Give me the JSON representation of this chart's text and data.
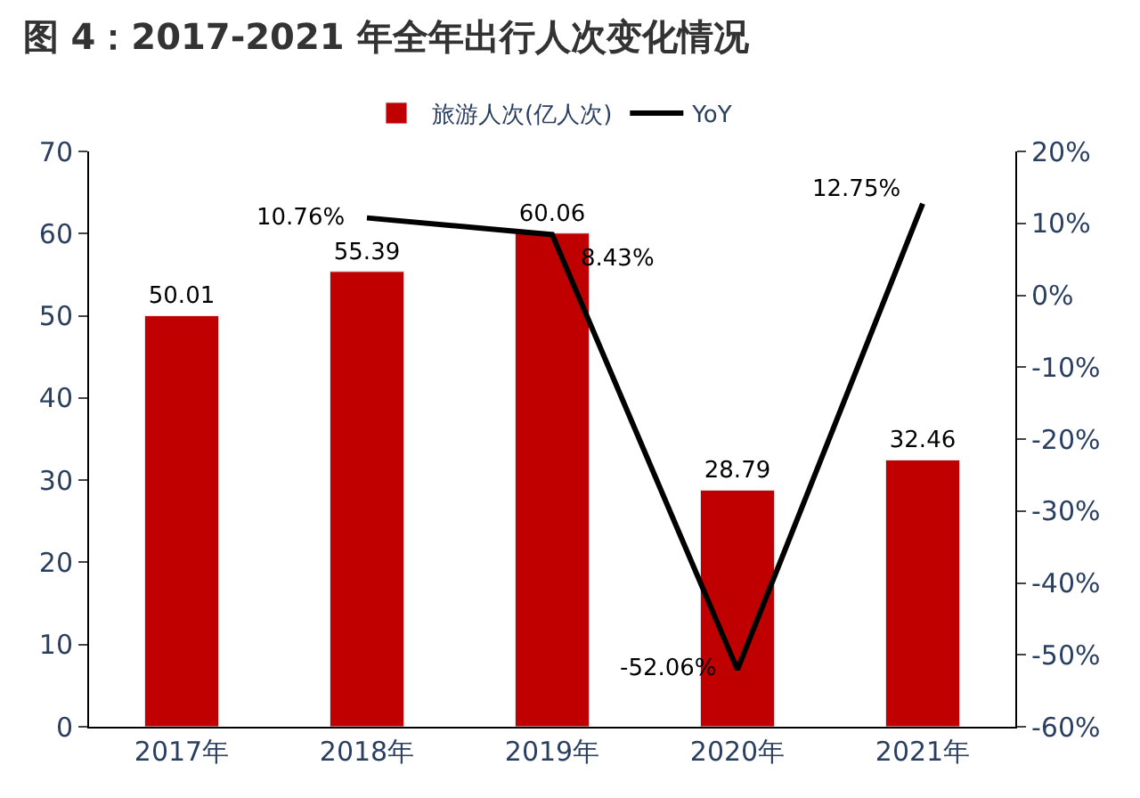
{
  "chart_data": {
    "type": "bar",
    "title": "图 4：2017-2021 年全年出行人次变化情况",
    "categories": [
      "2017年",
      "2018年",
      "2019年",
      "2020年",
      "2021年"
    ],
    "series": [
      {
        "name": "旅游人次(亿人次)",
        "color": "#c00000",
        "values": [
          50.01,
          55.39,
          60.06,
          28.79,
          32.46
        ],
        "value_labels": [
          "50.01",
          "55.39",
          "60.06",
          "28.79",
          "32.46"
        ]
      },
      {
        "name": "YoY",
        "type": "line",
        "axis": "y2",
        "color": "#000000",
        "values": [
          null,
          10.76,
          8.43,
          -52.06,
          12.75
        ],
        "value_labels": [
          null,
          "10.76%",
          "8.43%",
          "-52.06%",
          "12.75%"
        ]
      }
    ],
    "ylim": [
      0,
      70
    ],
    "yticks": [
      0,
      10,
      20,
      30,
      40,
      50,
      60,
      70
    ],
    "y2lim": [
      -60,
      20
    ],
    "y2ticks": [
      {
        "value": -60,
        "label": "-60%"
      },
      {
        "value": -50,
        "label": "-50%"
      },
      {
        "value": -40,
        "label": "-40%"
      },
      {
        "value": -30,
        "label": "-30%"
      },
      {
        "value": -20,
        "label": "-20%"
      },
      {
        "value": -10,
        "label": "-10%"
      },
      {
        "value": 0,
        "label": "0%"
      },
      {
        "value": 10,
        "label": "10%"
      },
      {
        "value": 20,
        "label": "20%"
      }
    ],
    "legend": "top",
    "marker": "none",
    "line_style": "solid"
  }
}
